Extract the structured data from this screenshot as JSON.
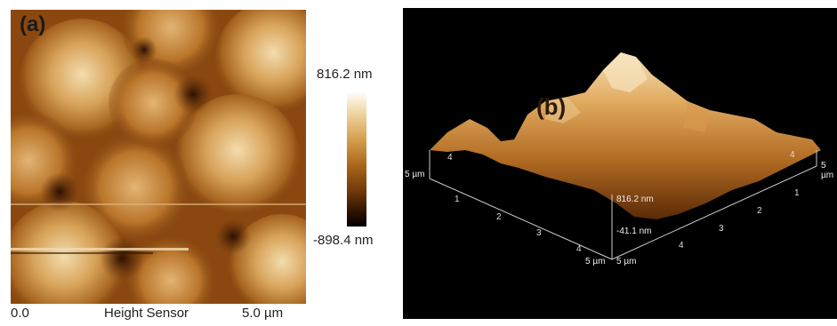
{
  "panel_a": {
    "label": "(a)",
    "x_start": "0.0",
    "channel": "Height Sensor",
    "x_end": "5.0 µm",
    "colorbar": {
      "max": "816.2 nm",
      "min": "-898.4 nm"
    }
  },
  "panel_b": {
    "label": "(b)",
    "z_top": "816.2 nm",
    "z_mid": "-41.1 nm",
    "axis_left_end": "5 µm",
    "axis_right_end": "5 µm",
    "axis_front_left": "5 µm",
    "axis_front_right": "5 µm",
    "left_ticks": [
      "1",
      "2",
      "3",
      "4"
    ],
    "right_ticks": [
      "1",
      "2",
      "3",
      "4"
    ],
    "back_left_tick": "4",
    "back_right_tick": "4"
  },
  "colors": {
    "dark_brown": "#3b1a04",
    "mid_brown": "#a9661a",
    "highlight": "#f5e0b8"
  }
}
